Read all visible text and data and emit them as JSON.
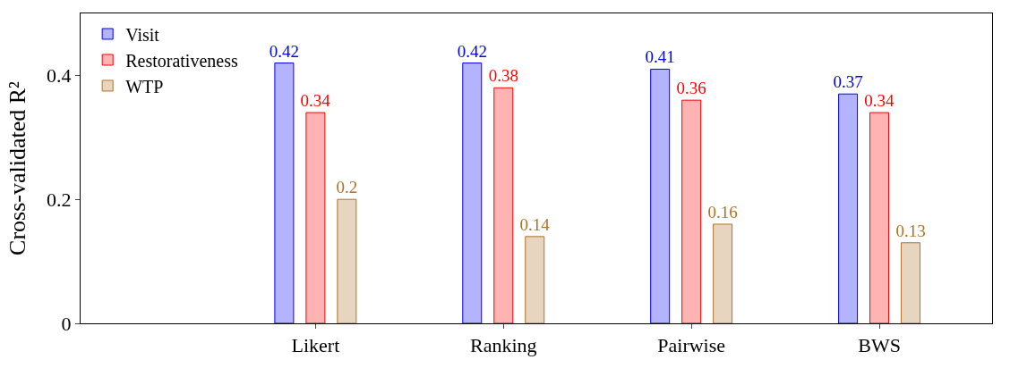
{
  "chart_data": {
    "type": "bar",
    "ylabel": "Cross-validated R²",
    "categories": [
      "Likert",
      "Ranking",
      "Pairwise",
      "BWS"
    ],
    "series": [
      {
        "name": "Visit",
        "color": "#b3b3ff",
        "values": [
          0.42,
          0.42,
          0.41,
          0.37
        ]
      },
      {
        "name": "Restorativeness",
        "color": "#ffb3b3",
        "values": [
          0.34,
          0.38,
          0.36,
          0.34
        ]
      },
      {
        "name": "WTP",
        "color": "#e8d5bf",
        "values": [
          0.2,
          0.14,
          0.16,
          0.13
        ]
      }
    ],
    "ylim": [
      0,
      0.5
    ],
    "yticks": [
      0,
      0.2,
      0.4
    ],
    "legend": "top left",
    "data_labels": true
  }
}
